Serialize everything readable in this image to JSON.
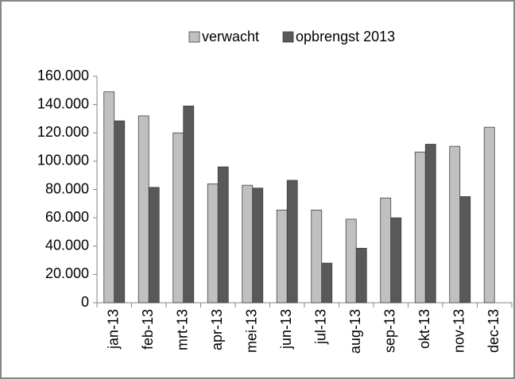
{
  "chart_data": {
    "type": "bar",
    "categories": [
      "jan-13",
      "feb-13",
      "mrt-13",
      "apr-13",
      "mei-13",
      "jun-13",
      "jul-13",
      "aug-13",
      "sep-13",
      "okt-13",
      "nov-13",
      "dec-13"
    ],
    "series": [
      {
        "name": "verwacht",
        "color": "#c0c0c0",
        "values": [
          149000,
          132000,
          120000,
          84000,
          83000,
          65500,
          65500,
          59000,
          74000,
          106500,
          110500,
          124000
        ]
      },
      {
        "name": "opbrengst 2013",
        "color": "#595959",
        "values": [
          128500,
          81500,
          139000,
          96000,
          81000,
          86500,
          28000,
          38500,
          60000,
          112000,
          75000,
          null
        ]
      }
    ],
    "ylim": [
      0,
      160000
    ],
    "yticks": [
      0,
      {
        "value": 20000,
        "label": "20.000"
      },
      {
        "value": 40000,
        "label": "40.000"
      },
      {
        "value": 60000,
        "label": "60.000"
      },
      {
        "value": 80000,
        "label": "80.000"
      },
      {
        "value": 100000,
        "label": "100.000"
      },
      {
        "value": 120000,
        "label": "120.000"
      },
      {
        "value": 140000,
        "label": "140.000"
      },
      {
        "value": 160000,
        "label": "160.000"
      }
    ],
    "grid": false,
    "legend": "top"
  }
}
